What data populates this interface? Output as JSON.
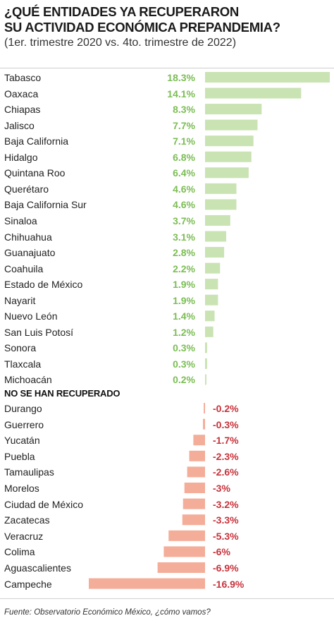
{
  "title_line1": "¿QUÉ ENTIDADES YA RECUPERARON",
  "title_line2": "SU ACTIVIDAD ECONÓMICA PREPANDEMIA?",
  "subtitle": "(1er. trimestre 2020 vs. 4to. trimestre de 2022)",
  "section_label": "NO SE HAN RECUPERADO",
  "source": "Fuente: Observatorio Económico México, ¿cómo vamos?",
  "colors": {
    "positive_bar": "#c9e3b3",
    "positive_text": "#7cbd55",
    "negative_bar": "#f4ad98",
    "negative_text": "#c8323b"
  },
  "chart_data": {
    "type": "bar",
    "orientation": "horizontal",
    "unit": "%",
    "recovered": [
      {
        "state": "Tabasco",
        "value": 18.3,
        "label": "18.3%"
      },
      {
        "state": "Oaxaca",
        "value": 14.1,
        "label": "14.1%"
      },
      {
        "state": "Chiapas",
        "value": 8.3,
        "label": "8.3%"
      },
      {
        "state": "Jalisco",
        "value": 7.7,
        "label": "7.7%"
      },
      {
        "state": "Baja California",
        "value": 7.1,
        "label": "7.1%"
      },
      {
        "state": "Hidalgo",
        "value": 6.8,
        "label": "6.8%"
      },
      {
        "state": "Quintana Roo",
        "value": 6.4,
        "label": "6.4%"
      },
      {
        "state": "Querétaro",
        "value": 4.6,
        "label": "4.6%"
      },
      {
        "state": "Baja California Sur",
        "value": 4.6,
        "label": "4.6%"
      },
      {
        "state": "Sinaloa",
        "value": 3.7,
        "label": "3.7%"
      },
      {
        "state": "Chihuahua",
        "value": 3.1,
        "label": "3.1%"
      },
      {
        "state": "Guanajuato",
        "value": 2.8,
        "label": "2.8%"
      },
      {
        "state": "Coahuila",
        "value": 2.2,
        "label": "2.2%"
      },
      {
        "state": "Estado de México",
        "value": 1.9,
        "label": "1.9%"
      },
      {
        "state": "Nayarit",
        "value": 1.9,
        "label": "1.9%"
      },
      {
        "state": "Nuevo León",
        "value": 1.4,
        "label": "1.4%"
      },
      {
        "state": "San Luis Potosí",
        "value": 1.2,
        "label": "1.2%"
      },
      {
        "state": "Sonora",
        "value": 0.3,
        "label": "0.3%"
      },
      {
        "state": "Tlaxcala",
        "value": 0.3,
        "label": "0.3%"
      },
      {
        "state": "Michoacán",
        "value": 0.2,
        "label": "0.2%"
      }
    ],
    "not_recovered": [
      {
        "state": "Durango",
        "value": -0.2,
        "label": "-0.2%"
      },
      {
        "state": "Guerrero",
        "value": -0.3,
        "label": "-0.3%"
      },
      {
        "state": "Yucatán",
        "value": -1.7,
        "label": "-1.7%"
      },
      {
        "state": "Puebla",
        "value": -2.3,
        "label": "-2.3%"
      },
      {
        "state": "Tamaulipas",
        "value": -2.6,
        "label": "-2.6%"
      },
      {
        "state": "Morelos",
        "value": -3,
        "label": "-3%"
      },
      {
        "state": "Ciudad de México",
        "value": -3.2,
        "label": "-3.2%"
      },
      {
        "state": "Zacatecas",
        "value": -3.3,
        "label": "-3.3%"
      },
      {
        "state": "Veracruz",
        "value": -5.3,
        "label": "-5.3%"
      },
      {
        "state": "Colima",
        "value": -6,
        "label": "-6%"
      },
      {
        "state": "Aguascalientes",
        "value": -6.9,
        "label": "-6.9%"
      },
      {
        "state": "Campeche",
        "value": -16.9,
        "label": "-16.9%"
      }
    ]
  }
}
